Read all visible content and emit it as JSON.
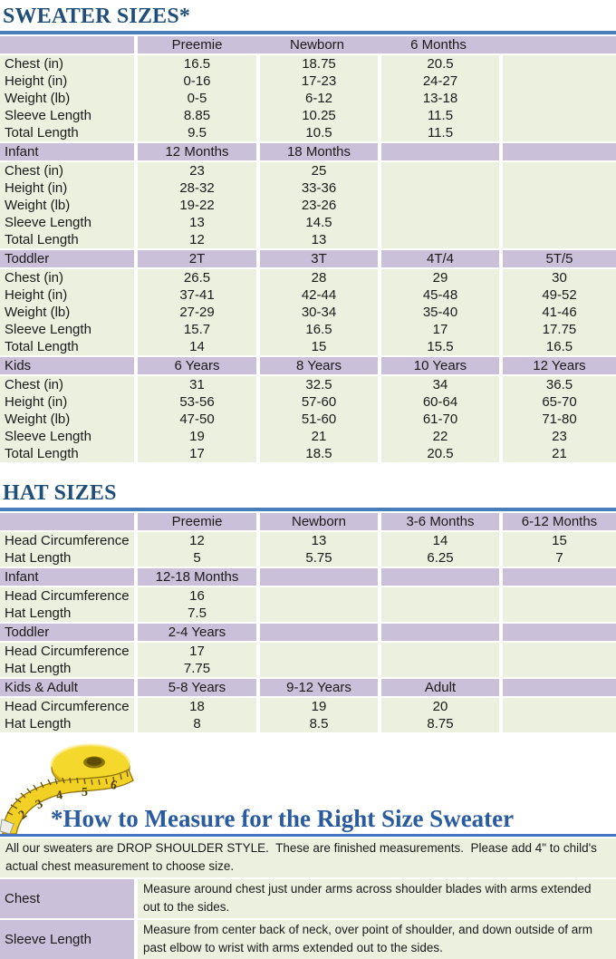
{
  "colors": {
    "title_navy": "#1F4E79",
    "howto_blue": "#2A5B9E",
    "rule_blue": "#4A7EBB",
    "header_purple": "#CBC0DA",
    "cell_green": "#EBF1DE",
    "tape_yellow": "#F2D124"
  },
  "sweater_table": {
    "title": "SWEATER SIZES*",
    "row_labels": [
      "Chest (in)",
      "Height (in)",
      "Weight (lb)",
      "Sleeve Length",
      "Total Length"
    ],
    "sections": [
      {
        "name": "",
        "merged_header": true,
        "columns": [
          "Preemie",
          "Newborn",
          "6 Months",
          ""
        ],
        "rows": [
          [
            "16.5",
            "18.75",
            "20.5",
            ""
          ],
          [
            "0-16",
            "17-23",
            "24-27",
            ""
          ],
          [
            "0-5",
            "6-12",
            "13-18",
            ""
          ],
          [
            "8.85",
            "10.25",
            "11.5",
            ""
          ],
          [
            "9.5",
            "10.5",
            "11.5",
            ""
          ]
        ]
      },
      {
        "name": "Infant",
        "merged_header": false,
        "columns": [
          "12 Months",
          "18 Months",
          "",
          ""
        ],
        "rows": [
          [
            "23",
            "25",
            "",
            ""
          ],
          [
            "28-32",
            "33-36",
            "",
            ""
          ],
          [
            "19-22",
            "23-26",
            "",
            ""
          ],
          [
            "13",
            "14.5",
            "",
            ""
          ],
          [
            "12",
            "13",
            "",
            ""
          ]
        ]
      },
      {
        "name": "Toddler",
        "merged_header": false,
        "columns": [
          "2T",
          "3T",
          "4T/4",
          "5T/5"
        ],
        "rows": [
          [
            "26.5",
            "28",
            "29",
            "30"
          ],
          [
            "37-41",
            "42-44",
            "45-48",
            "49-52"
          ],
          [
            "27-29",
            "30-34",
            "35-40",
            "41-46"
          ],
          [
            "15.7",
            "16.5",
            "17",
            "17.75"
          ],
          [
            "14",
            "15",
            "15.5",
            "16.5"
          ]
        ]
      },
      {
        "name": "Kids",
        "merged_header": false,
        "columns": [
          "6 Years",
          "8 Years",
          "10 Years",
          "12 Years"
        ],
        "rows": [
          [
            "31",
            "32.5",
            "34",
            "36.5"
          ],
          [
            "53-56",
            "57-60",
            "60-64",
            "65-70"
          ],
          [
            "47-50",
            "51-60",
            "61-70",
            "71-80"
          ],
          [
            "19",
            "21",
            "22",
            "23"
          ],
          [
            "17",
            "18.5",
            "20.5",
            "21"
          ]
        ]
      }
    ]
  },
  "hat_table": {
    "title": "HAT SIZES",
    "row_labels": [
      "Head Circumference",
      "Hat Length"
    ],
    "sections": [
      {
        "name": "",
        "merged_header": false,
        "columns": [
          "Preemie",
          "Newborn",
          "3-6 Months",
          "6-12 Months"
        ],
        "rows": [
          [
            "12",
            "13",
            "14",
            "15"
          ],
          [
            "5",
            "5.75",
            "6.25",
            "7"
          ]
        ]
      },
      {
        "name": "Infant",
        "merged_header": false,
        "columns": [
          "12-18 Months",
          "",
          "",
          ""
        ],
        "rows": [
          [
            "16",
            "",
            "",
            ""
          ],
          [
            "7.5",
            "",
            "",
            ""
          ]
        ]
      },
      {
        "name": "Toddler",
        "merged_header": false,
        "columns": [
          "2-4 Years",
          "",
          "",
          ""
        ],
        "rows": [
          [
            "17",
            "",
            "",
            ""
          ],
          [
            "7.75",
            "",
            "",
            ""
          ]
        ]
      },
      {
        "name": "Kids & Adult",
        "merged_header": false,
        "columns": [
          "5-8 Years",
          "9-12 Years",
          "Adult",
          ""
        ],
        "rows": [
          [
            "18",
            "19",
            "20",
            ""
          ],
          [
            "8",
            "8.5",
            "8.75",
            ""
          ]
        ]
      }
    ]
  },
  "measure_section": {
    "icon": "measuring-tape",
    "tape_numbers": [
      "1",
      "2",
      "3",
      "4",
      "5",
      "6"
    ],
    "title": "*How to Measure for the Right Size Sweater",
    "intro": "All our sweaters are DROP SHOULDER STYLE.  These are finished measurements.  Please add 4\" to child's actual chest measurement to choose size.",
    "rows": [
      {
        "label": "Chest",
        "text": "Measure around chest just under arms across shoulder blades with arms extended out to the sides."
      },
      {
        "label": "Sleeve Length",
        "text": "Measure from center back of neck, over point of shoulder, and down outside of arm past elbow to wrist with arms extended out to the sides."
      }
    ]
  }
}
